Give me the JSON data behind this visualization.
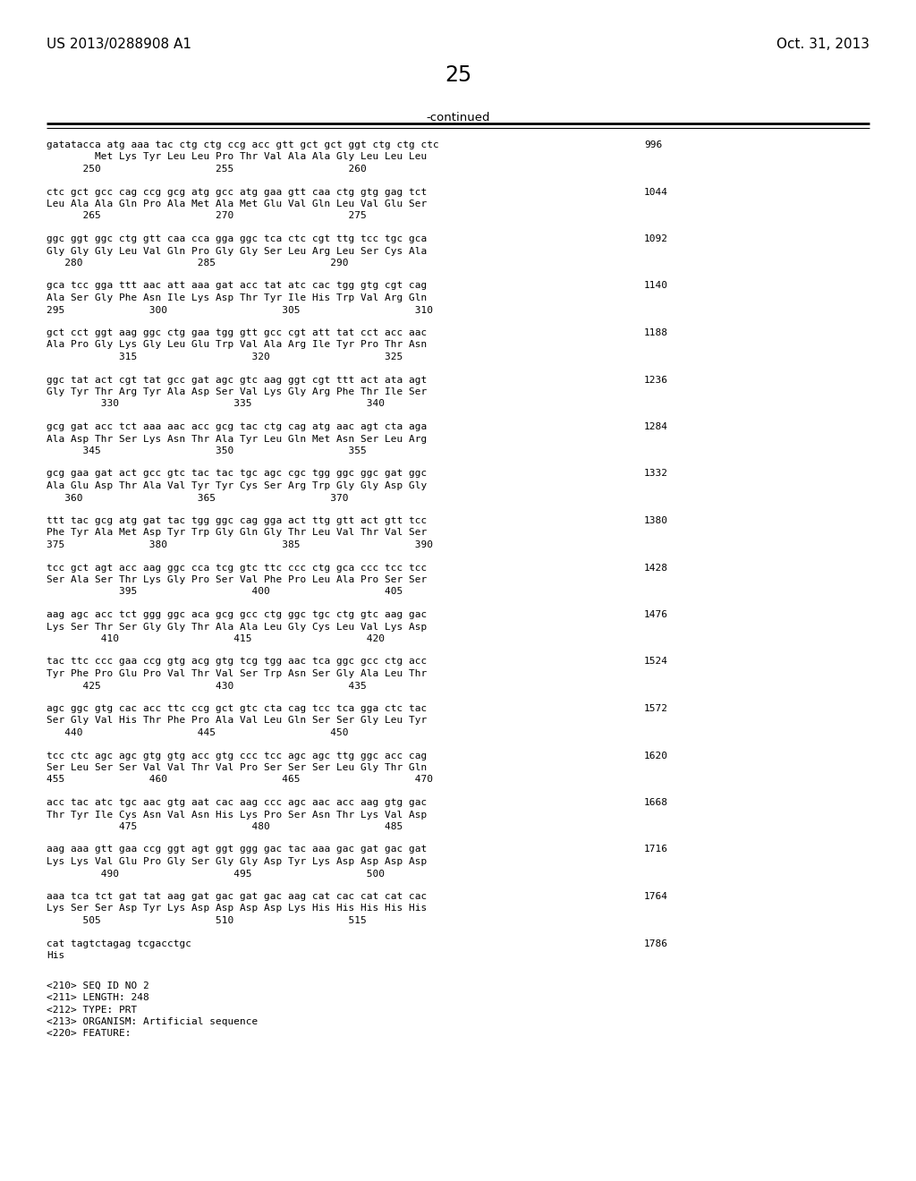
{
  "left_header": "US 2013/0288908 A1",
  "right_header": "Oct. 31, 2013",
  "page_number": "25",
  "continued_label": "-continued",
  "background_color": "#ffffff",
  "text_color": "#000000",
  "content_blocks": [
    {
      "dna": "gatatacca atg aaa tac ctg ctg ccg acc gtt gct gct ggt ctg ctg ctc",
      "aa": "        Met Lys Tyr Leu Leu Pro Thr Val Ala Ala Gly Leu Leu Leu",
      "nums": "      250                   255                   260",
      "num_right": "996"
    },
    {
      "dna": "ctc gct gcc cag ccg gcg atg gcc atg gaa gtt caa ctg gtg gag tct",
      "aa": "Leu Ala Ala Gln Pro Ala Met Ala Met Glu Val Gln Leu Val Glu Ser",
      "nums": "      265                   270                   275",
      "num_right": "1044"
    },
    {
      "dna": "ggc ggt ggc ctg gtt caa cca gga ggc tca ctc cgt ttg tcc tgc gca",
      "aa": "Gly Gly Gly Leu Val Gln Pro Gly Gly Ser Leu Arg Leu Ser Cys Ala",
      "nums": "   280                   285                   290",
      "num_right": "1092"
    },
    {
      "dna": "gca tcc gga ttt aac att aaa gat acc tat atc cac tgg gtg cgt cag",
      "aa": "Ala Ser Gly Phe Asn Ile Lys Asp Thr Tyr Ile His Trp Val Arg Gln",
      "nums": "295              300                   305                   310",
      "num_right": "1140"
    },
    {
      "dna": "gct cct ggt aag ggc ctg gaa tgg gtt gcc cgt att tat cct acc aac",
      "aa": "Ala Pro Gly Lys Gly Leu Glu Trp Val Ala Arg Ile Tyr Pro Thr Asn",
      "nums": "            315                   320                   325",
      "num_right": "1188"
    },
    {
      "dna": "ggc tat act cgt tat gcc gat agc gtc aag ggt cgt ttt act ata agt",
      "aa": "Gly Tyr Thr Arg Tyr Ala Asp Ser Val Lys Gly Arg Phe Thr Ile Ser",
      "nums": "         330                   335                   340",
      "num_right": "1236"
    },
    {
      "dna": "gcg gat acc tct aaa aac acc gcg tac ctg cag atg aac agt cta aga",
      "aa": "Ala Asp Thr Ser Lys Asn Thr Ala Tyr Leu Gln Met Asn Ser Leu Arg",
      "nums": "      345                   350                   355",
      "num_right": "1284"
    },
    {
      "dna": "gcg gaa gat act gcc gtc tac tac tgc agc cgc tgg ggc ggc gat ggc",
      "aa": "Ala Glu Asp Thr Ala Val Tyr Tyr Cys Ser Arg Trp Gly Gly Asp Gly",
      "nums": "   360                   365                   370",
      "num_right": "1332"
    },
    {
      "dna": "ttt tac gcg atg gat tac tgg ggc cag gga act ttg gtt act gtt tcc",
      "aa": "Phe Tyr Ala Met Asp Tyr Trp Gly Gln Gly Thr Leu Val Thr Val Ser",
      "nums": "375              380                   385                   390",
      "num_right": "1380"
    },
    {
      "dna": "tcc gct agt acc aag ggc cca tcg gtc ttc ccc ctg gca ccc tcc tcc",
      "aa": "Ser Ala Ser Thr Lys Gly Pro Ser Val Phe Pro Leu Ala Pro Ser Ser",
      "nums": "            395                   400                   405",
      "num_right": "1428"
    },
    {
      "dna": "aag agc acc tct ggg ggc aca gcg gcc ctg ggc tgc ctg gtc aag gac",
      "aa": "Lys Ser Thr Ser Gly Gly Thr Ala Ala Leu Gly Cys Leu Val Lys Asp",
      "nums": "         410                   415                   420",
      "num_right": "1476"
    },
    {
      "dna": "tac ttc ccc gaa ccg gtg acg gtg tcg tgg aac tca ggc gcc ctg acc",
      "aa": "Tyr Phe Pro Glu Pro Val Thr Val Ser Trp Asn Ser Gly Ala Leu Thr",
      "nums": "      425                   430                   435",
      "num_right": "1524"
    },
    {
      "dna": "agc ggc gtg cac acc ttc ccg gct gtc cta cag tcc tca gga ctc tac",
      "aa": "Ser Gly Val His Thr Phe Pro Ala Val Leu Gln Ser Ser Gly Leu Tyr",
      "nums": "   440                   445                   450",
      "num_right": "1572"
    },
    {
      "dna": "tcc ctc agc agc gtg gtg acc gtg ccc tcc agc agc ttg ggc acc cag",
      "aa": "Ser Leu Ser Ser Val Val Thr Val Pro Ser Ser Ser Leu Gly Thr Gln",
      "nums": "455              460                   465                   470",
      "num_right": "1620"
    },
    {
      "dna": "acc tac atc tgc aac gtg aat cac aag ccc agc aac acc aag gtg gac",
      "aa": "Thr Tyr Ile Cys Asn Val Asn His Lys Pro Ser Asn Thr Lys Val Asp",
      "nums": "            475                   480                   485",
      "num_right": "1668"
    },
    {
      "dna": "aag aaa gtt gaa ccg ggt agt ggt ggg gac tac aaa gac gat gac gat",
      "aa": "Lys Lys Val Glu Pro Gly Ser Gly Gly Asp Tyr Lys Asp Asp Asp Asp",
      "nums": "         490                   495                   500",
      "num_right": "1716"
    },
    {
      "dna": "aaa tca tct gat tat aag gat gac gat gac aag cat cac cat cat cac",
      "aa": "Lys Ser Ser Asp Tyr Lys Asp Asp Asp Asp Lys His His His His His",
      "nums": "      505                   510                   515",
      "num_right": "1764"
    },
    {
      "dna": "cat tagtctagag tcgacctgc",
      "aa": "His",
      "nums": "",
      "num_right": "1786"
    }
  ],
  "footer_lines": [
    "<210> SEQ ID NO 2",
    "<211> LENGTH: 248",
    "<212> TYPE: PRT",
    "<213> ORGANISM: Artificial sequence",
    "<220> FEATURE:"
  ]
}
